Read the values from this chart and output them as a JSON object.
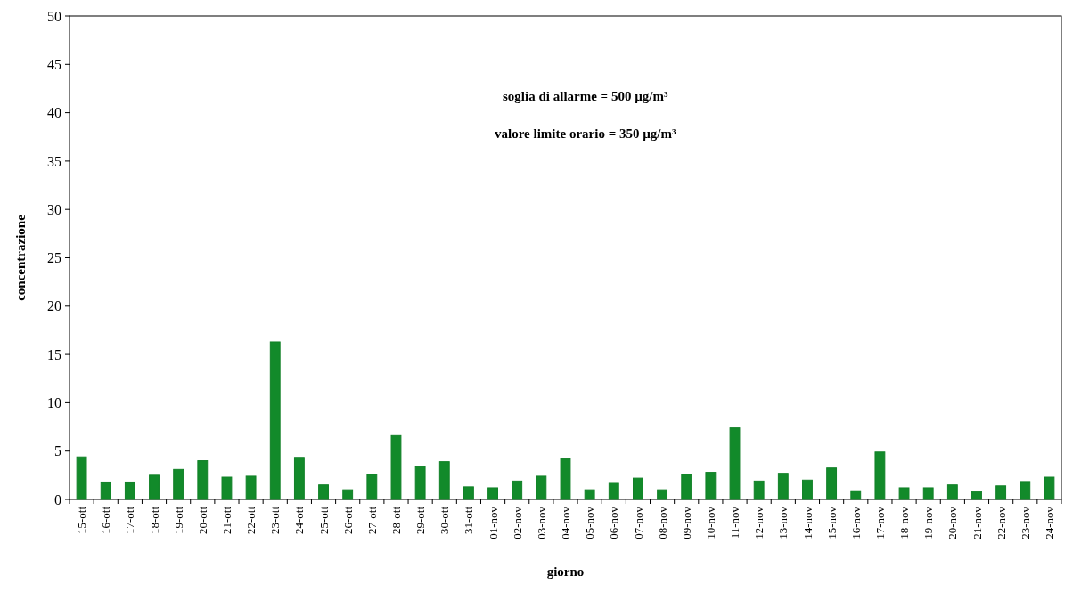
{
  "chart_data": {
    "type": "bar",
    "xlabel": "giorno",
    "ylabel": "concentrazione",
    "annotations": [
      "soglia di allarme = 500 µg/m³",
      "valore limite orario = 350 µg/m³"
    ],
    "categories": [
      "15-ott",
      "16-ott",
      "17-ott",
      "18-ott",
      "19-ott",
      "20-ott",
      "21-ott",
      "22-ott",
      "23-ott",
      "24-ott",
      "25-ott",
      "26-ott",
      "27-ott",
      "28-ott",
      "29-ott",
      "30-ott",
      "31-ott",
      "01-nov",
      "02-nov",
      "03-nov",
      "04-nov",
      "05-nov",
      "06-nov",
      "07-nov",
      "08-nov",
      "09-nov",
      "10-nov",
      "11-nov",
      "12-nov",
      "13-nov",
      "14-nov",
      "15-nov",
      "16-nov",
      "17-nov",
      "18-nov",
      "19-nov",
      "20-nov",
      "21-nov",
      "22-nov",
      "23-nov",
      "24-nov"
    ],
    "values": [
      4.4,
      1.8,
      1.8,
      2.5,
      3.1,
      4.0,
      2.3,
      2.4,
      16.3,
      4.35,
      1.5,
      1.0,
      2.6,
      6.6,
      3.4,
      3.9,
      1.3,
      1.2,
      1.9,
      2.4,
      4.2,
      1.0,
      1.75,
      2.2,
      1.0,
      2.6,
      2.8,
      7.4,
      1.9,
      2.7,
      2.0,
      3.25,
      0.9,
      4.9,
      1.2,
      1.2,
      1.5,
      0.8,
      1.4,
      1.85,
      2.3
    ],
    "color": "#128a2a",
    "ylim": [
      0,
      50
    ],
    "yticks": [
      0,
      5,
      10,
      15,
      20,
      25,
      30,
      35,
      40,
      45,
      50
    ],
    "grid": false
  }
}
